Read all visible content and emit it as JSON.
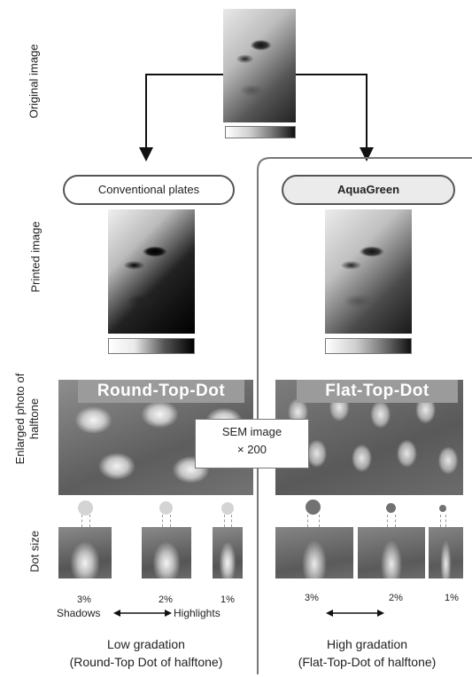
{
  "row_labels": {
    "original": "Original image",
    "printed": "Printed image",
    "enlarged_line1": "Enlarged photo of",
    "enlarged_line2": "halftone",
    "dot_size": "Dot size"
  },
  "left": {
    "plate_label": "Conventional plates",
    "banner": "Round-Top-Dot",
    "percents": [
      "3%",
      "2%",
      "1%"
    ],
    "shadows": "Shadows",
    "highlights": "Highlights",
    "caption_line1": "Low gradation",
    "caption_line2": "(Round-Top Dot of halftone)"
  },
  "right": {
    "plate_label": "AquaGreen",
    "banner": "Flat-Top-Dot",
    "percents": [
      "3%",
      "2%",
      "1%"
    ],
    "caption_line1": "High gradation",
    "caption_line2": "(Flat-Top-Dot of halftone)"
  },
  "sem": {
    "line1": "SEM image",
    "line2": "× 200"
  },
  "colors": {
    "left_dot": "#cfcfcf",
    "right_dot": "#7a7a7a",
    "banner": "#9b9b9b"
  }
}
